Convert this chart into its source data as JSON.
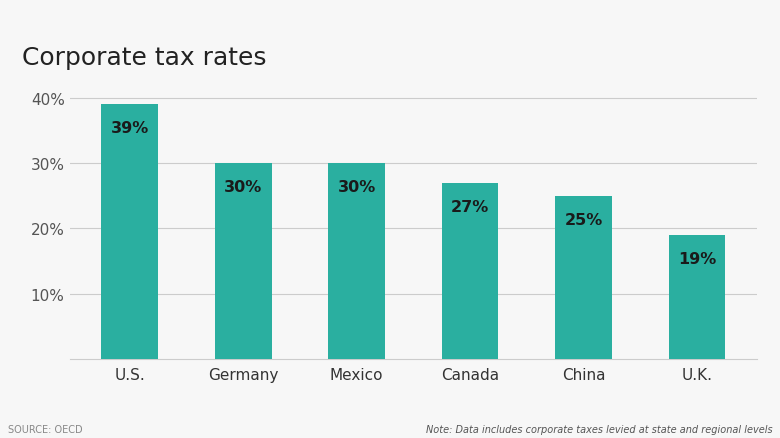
{
  "title": "Corporate tax rates",
  "categories": [
    "U.S.",
    "Germany",
    "Mexico",
    "Canada",
    "China",
    "U.K."
  ],
  "values": [
    39,
    30,
    30,
    27,
    25,
    19
  ],
  "bar_color": "#2AAFA0",
  "label_color": "#1a1a1a",
  "label_fontsize": 11.5,
  "title_fontsize": 18,
  "tick_fontsize": 11,
  "yticks": [
    10,
    20,
    30,
    40
  ],
  "ylim": [
    0,
    43
  ],
  "source_text": "SOURCE: OECD",
  "note_text": "Note: Data includes corporate taxes levied at state and regional levels",
  "background_color": "#f7f7f7",
  "grid_color": "#cccccc",
  "bar_width": 0.5
}
